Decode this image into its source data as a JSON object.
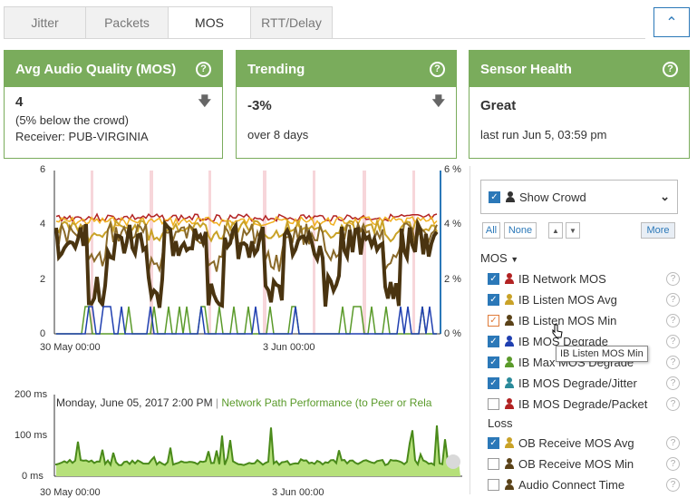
{
  "tabs": [
    {
      "label": "Jitter"
    },
    {
      "label": "Packets"
    },
    {
      "label": "MOS"
    },
    {
      "label": "RTT/Delay"
    }
  ],
  "cards": {
    "mos": {
      "title": "Avg Audio Quality (MOS)",
      "value": "4",
      "line2": "(5% below the crowd)",
      "line3": "Receiver: PUB-VIRGINIA"
    },
    "trending": {
      "title": "Trending",
      "value": "-3%",
      "line2": "over 8 days"
    },
    "health": {
      "title": "Sensor Health",
      "value": "Great",
      "line2": "last run Jun 5, 03:59 pm"
    }
  },
  "chart": {
    "yleft": [
      "6",
      "4",
      "2",
      "0"
    ],
    "yright": [
      "6 %",
      "4 %",
      "2 %",
      "0 %"
    ],
    "xticks": [
      "30 May 00:00",
      "3 Jun 00:00"
    ]
  },
  "chart2": {
    "yticks": [
      "200 ms",
      "100 ms",
      "0 ms"
    ],
    "xticks": [
      "30 May 00:00",
      "3 Jun 00:00"
    ],
    "tooltip_date": "Monday, June 05, 2017 2:00 PM",
    "tooltip_sep": "|",
    "tooltip_series": "Network Path Performance (to Peer or Rela"
  },
  "panel": {
    "show_crowd": "Show Crowd",
    "all": "All",
    "none": "None",
    "more": "More",
    "section": "MOS",
    "items": [
      {
        "label": "IB Network MOS",
        "checked": true,
        "color": "#b22222"
      },
      {
        "label": "IB Listen MOS Avg",
        "checked": true,
        "color": "#c9a227"
      },
      {
        "label": "IB Listen MOS Min",
        "checked": true,
        "color": "#5a4218"
      },
      {
        "label": "IB MOS Degrade",
        "checked": true,
        "color": "#1f3fb0"
      },
      {
        "label": "IB Max MOS Degrade",
        "checked": true,
        "color": "#5a9a2a"
      },
      {
        "label": "IB MOS Degrade/Jitter",
        "checked": true,
        "color": "#2a8a9a"
      },
      {
        "label": "IB MOS Degrade/Packet",
        "checked": false,
        "color": "#b22222"
      },
      {
        "label": "Loss",
        "checked": null
      },
      {
        "label": "OB Receive MOS Avg",
        "checked": true,
        "color": "#c9a227"
      },
      {
        "label": "OB Receive MOS Min",
        "checked": false,
        "color": "#5a4218"
      },
      {
        "label": "Audio Connect Time",
        "checked": false,
        "color": "#5a4218"
      }
    ],
    "tooltip": "IB Listen MOS Min"
  }
}
